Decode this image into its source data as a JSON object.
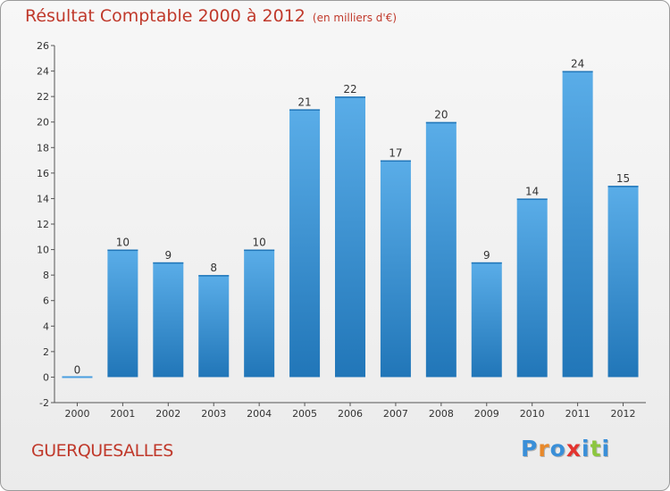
{
  "header": {
    "title": "Résultat Comptable 2000 à 2012",
    "subtitle": "(en milliers d'€)"
  },
  "footer": {
    "commune": "GUERQUESALLES",
    "brand_letters": [
      "P",
      "r",
      "o",
      "x",
      "i",
      "t",
      "i"
    ],
    "brand_colors": [
      "#3a8fd8",
      "#e8892b",
      "#3a8fd8",
      "#e3342f",
      "#3a8fd8",
      "#8cc63f",
      "#3a8fd8"
    ]
  },
  "chart_data": {
    "type": "bar",
    "title": "Résultat Comptable 2000 à 2012",
    "subtitle": "(en milliers d'€)",
    "xlabel": "",
    "ylabel": "",
    "categories": [
      "2000",
      "2001",
      "2002",
      "2003",
      "2004",
      "2005",
      "2006",
      "2007",
      "2008",
      "2009",
      "2010",
      "2011",
      "2012"
    ],
    "values": [
      0,
      10,
      9,
      8,
      10,
      21,
      22,
      17,
      20,
      9,
      14,
      24,
      15
    ],
    "ylim": [
      -2,
      26
    ],
    "yticks": [
      -2,
      0,
      2,
      4,
      6,
      8,
      10,
      12,
      14,
      16,
      18,
      20,
      22,
      24,
      26
    ],
    "grid": false,
    "bar_color": "#4a9ee0",
    "bar_color_dark": "#2176b8"
  }
}
